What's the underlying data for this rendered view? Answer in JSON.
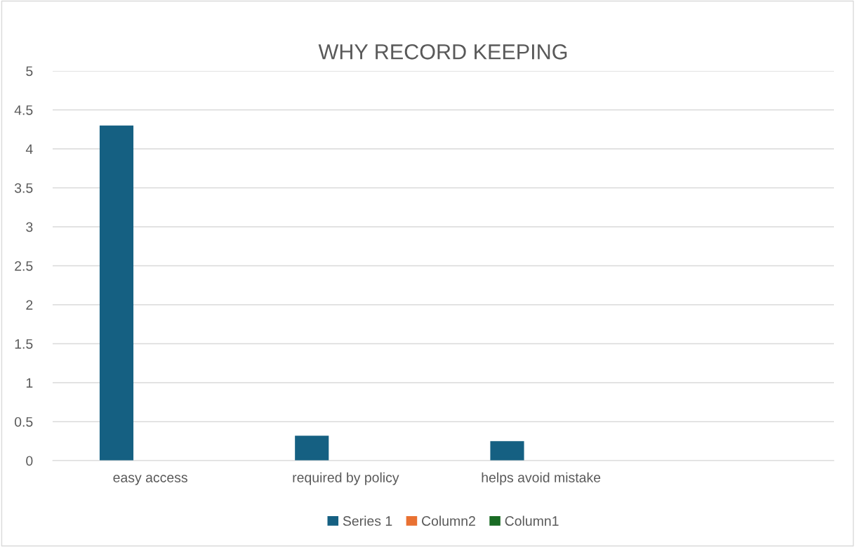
{
  "chart_data": {
    "type": "bar",
    "title": "WHY RECORD KEEPING",
    "categories": [
      "easy access",
      "required by policy",
      "helps avoid mistake",
      null
    ],
    "series": [
      {
        "name": "Series 1",
        "color": "#156082",
        "values": [
          4.3,
          0.32,
          0.25,
          null
        ]
      },
      {
        "name": "Column2",
        "color": "#e97132",
        "values": [
          null,
          null,
          null,
          null
        ]
      },
      {
        "name": "Column1",
        "color": "#196b24",
        "values": [
          null,
          null,
          null,
          null
        ]
      }
    ],
    "ylim": [
      0,
      5
    ],
    "yticks": [
      0,
      0.5,
      1,
      1.5,
      2,
      2.5,
      3,
      3.5,
      4,
      4.5,
      5
    ],
    "grid": "y",
    "legend": "bottom"
  }
}
